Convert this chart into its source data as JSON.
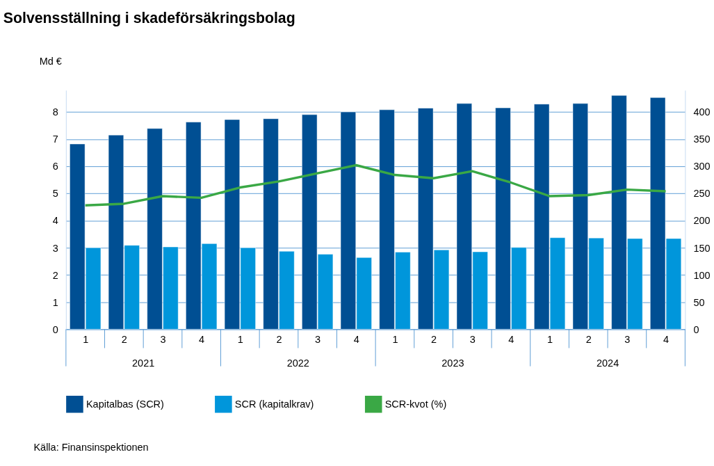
{
  "chart_data": {
    "type": "bar",
    "title": "Solvensställning i skadeförsäkringsbolag",
    "ylabel": "Md €",
    "categories": [
      "1",
      "2",
      "3",
      "4",
      "1",
      "2",
      "3",
      "4",
      "1",
      "2",
      "3",
      "4",
      "1",
      "2",
      "3",
      "4"
    ],
    "series": [
      {
        "name": "Kapitalbas (SCR)",
        "color": "#004f93",
        "values": [
          6.82,
          7.15,
          7.39,
          7.63,
          7.72,
          7.75,
          7.9,
          8.0,
          8.08,
          8.14,
          8.31,
          8.15,
          8.29,
          8.31,
          8.61,
          8.53
        ]
      },
      {
        "name": "SCR (kapitalkrav)",
        "color": "#0096db",
        "values": [
          3.0,
          3.09,
          3.03,
          3.15,
          3.0,
          2.87,
          2.76,
          2.64,
          2.84,
          2.92,
          2.85,
          3.01,
          3.37,
          3.36,
          3.34,
          3.34
        ]
      },
      {
        "name": "SCR-kvot (%)",
        "type": "line",
        "axis": "y2",
        "color": "#3aa845",
        "values": [
          228,
          231,
          245,
          242,
          261,
          272,
          287,
          302,
          284,
          278,
          291,
          270,
          245,
          247,
          257,
          254
        ]
      }
    ],
    "ylim": [
      0,
      8.8
    ],
    "yticks": [
      0,
      1,
      2,
      3,
      4,
      5,
      6,
      7,
      8
    ],
    "y2lim": [
      0,
      440
    ],
    "y2ticks": [
      0,
      50,
      100,
      150,
      200,
      250,
      300,
      350,
      400
    ],
    "grid": "y",
    "legend": "bottom",
    "annotations": [
      "2021",
      "2022",
      "2023",
      "2024",
      "Källa: Finansinspektionen"
    ]
  }
}
